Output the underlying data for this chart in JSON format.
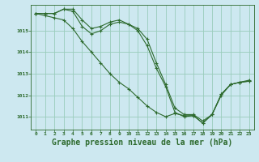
{
  "background_color": "#cde8f0",
  "plot_bg_color": "#cde8f0",
  "grid_color": "#99ccbb",
  "line_color": "#2d6a2d",
  "xlabel": "Graphe pression niveau de la mer (hPa)",
  "xlabel_fontsize": 7,
  "xlim": [
    -0.5,
    23.5
  ],
  "ylim": [
    1010.4,
    1016.2
  ],
  "yticks": [
    1011,
    1012,
    1013,
    1014,
    1015
  ],
  "xticks": [
    0,
    1,
    2,
    3,
    4,
    5,
    6,
    7,
    8,
    9,
    10,
    11,
    12,
    13,
    14,
    15,
    16,
    17,
    18,
    19,
    20,
    21,
    22,
    23
  ],
  "series": [
    [
      1015.8,
      1015.8,
      1015.8,
      1016.0,
      1016.0,
      1015.5,
      1015.1,
      1015.2,
      1015.4,
      1015.5,
      1015.3,
      1015.1,
      1014.6,
      1013.5,
      1012.5,
      1011.4,
      1011.1,
      1011.1,
      1010.8,
      1011.1,
      1012.0,
      1012.5,
      1012.6,
      1012.7
    ],
    [
      1015.8,
      1015.8,
      1015.8,
      1016.0,
      1015.9,
      1015.2,
      1014.85,
      1015.0,
      1015.3,
      1015.4,
      1015.3,
      1015.0,
      1014.3,
      1013.25,
      1012.4,
      1011.2,
      1011.0,
      1011.05,
      1010.7,
      1011.1,
      1012.05,
      1012.5,
      1012.6,
      1012.65
    ],
    [
      1015.8,
      1015.7,
      1015.6,
      1015.5,
      1015.1,
      1014.5,
      1014.0,
      1013.5,
      1013.0,
      1012.6,
      1012.3,
      1011.9,
      1011.5,
      1011.2,
      1011.0,
      1011.15,
      1011.05,
      1011.05,
      1010.7,
      1011.1,
      1012.05,
      1012.5,
      1012.6,
      1012.65
    ]
  ]
}
